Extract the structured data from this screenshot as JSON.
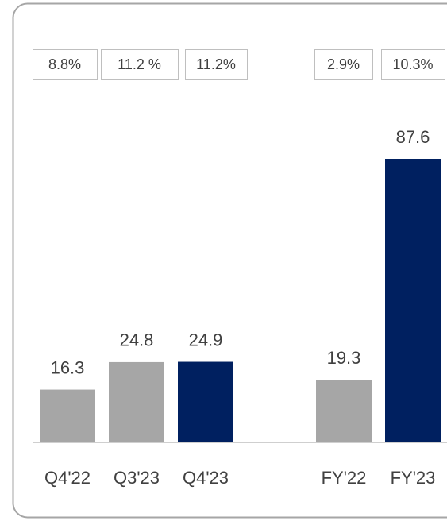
{
  "chart_data": {
    "type": "bar",
    "categories": [
      "Q4'22",
      "Q3'23",
      "Q4'23",
      "FY'22",
      "FY'23"
    ],
    "values": [
      16.3,
      24.8,
      24.9,
      19.3,
      87.6
    ],
    "colors": [
      "#a6a6a6",
      "#a6a6a6",
      "#002060",
      "#a6a6a6",
      "#002060"
    ],
    "annotations": [
      "8.8%",
      "11.2 %",
      "11.2%",
      "2.9%",
      "10.3%"
    ]
  }
}
